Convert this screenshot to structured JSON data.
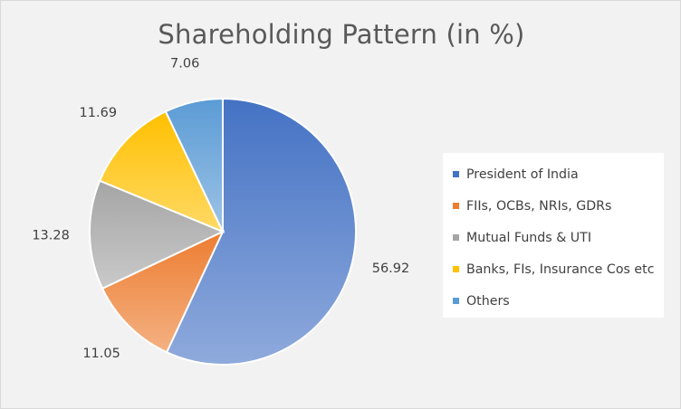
{
  "chart_data": {
    "type": "pie",
    "title": "Shareholding Pattern (in %)",
    "categories": [
      "President of India",
      "FIIs, OCBs, NRIs, GDRs",
      "Mutual Funds & UTI",
      "Banks, FIs, Insurance Cos etc",
      "Others"
    ],
    "values": [
      56.92,
      11.05,
      13.28,
      11.69,
      7.06
    ],
    "value_labels": [
      "56.92",
      "11.05",
      "13.28",
      "11.69",
      "7.06"
    ],
    "colors": [
      "#4472c4",
      "#ed7d31",
      "#a5a5a5",
      "#ffc000",
      "#5b9bd5"
    ],
    "gradient_light": [
      "#8faadc",
      "#f4b183",
      "#c9c9c9",
      "#ffd966",
      "#9dc3e6"
    ],
    "start_angle_deg": 0,
    "direction": "clockwise",
    "legend_position": "right",
    "data_labels": "outside-end"
  }
}
